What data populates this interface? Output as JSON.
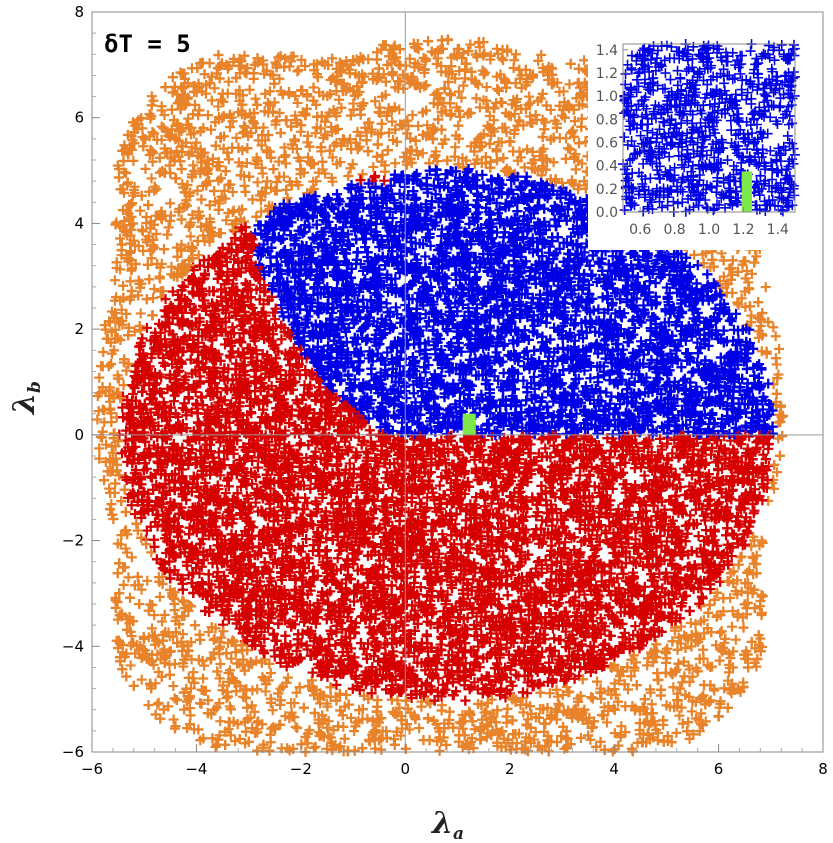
{
  "chart_data": [
    {
      "type": "scatter",
      "title": "",
      "annotation": "δT = 5",
      "xlabel": "λ",
      "xlabel_sub": "a",
      "ylabel": "λ",
      "ylabel_sub": "b",
      "xlim": [
        -6,
        8
      ],
      "ylim": [
        -6,
        8
      ],
      "xticks": [
        -6,
        -4,
        -2,
        0,
        2,
        4,
        6,
        8
      ],
      "yticks": [
        -6,
        -4,
        -2,
        0,
        2,
        4,
        6,
        8
      ],
      "xtick_labels": [
        "−6",
        "−4",
        "−2",
        "0",
        "2",
        "4",
        "6",
        "8"
      ],
      "ytick_labels": [
        "−6",
        "−4",
        "−2",
        "0",
        "2",
        "4",
        "6",
        "8"
      ],
      "marker": "+",
      "grid": false,
      "zero_lines": true,
      "colors": {
        "orange": "#e8832a",
        "red": "#d60000",
        "blue": "#0000e6",
        "green": "#7de84a"
      },
      "regions": {
        "orange": {
          "description_scan_rect": {
            "x": [
              -5.8,
              7.0
            ],
            "y": [
              -6,
              7.4
            ]
          }
        },
        "ellipse": {
          "cx": 0.8,
          "cy": 0,
          "rx": 6.3,
          "ry": 5.05
        },
        "red_boundary": [
          [
            -3.2,
            4.8
          ],
          [
            -2.8,
            3.2
          ],
          [
            -2.2,
            1.9
          ],
          [
            -1.5,
            0.9
          ],
          [
            -0.8,
            0.3
          ],
          [
            -0.3,
            0
          ]
        ],
        "green_box": {
          "x": [
            1.1,
            1.35
          ],
          "y": [
            0.0,
            0.4
          ]
        }
      }
    },
    {
      "type": "scatter",
      "title": "",
      "inset": true,
      "xlim": [
        0.5,
        1.5
      ],
      "ylim": [
        0.0,
        1.45
      ],
      "xticks": [
        0.6,
        0.8,
        1.0,
        1.2,
        1.4
      ],
      "yticks": [
        0.0,
        0.2,
        0.4,
        0.6,
        0.8,
        1.0,
        1.2,
        1.4
      ],
      "xtick_labels": [
        "0.6",
        "0.8",
        "1.0",
        "1.2",
        "1.4"
      ],
      "ytick_labels": [
        "0.0",
        "0.2",
        "0.4",
        "0.6",
        "0.8",
        "1.0",
        "1.2",
        "1.4"
      ],
      "marker": "+",
      "colors": {
        "blue": "#0000e6",
        "green": "#7de84a"
      },
      "green_box": {
        "x": [
          1.19,
          1.25
        ],
        "y": [
          0.0,
          0.35
        ]
      }
    }
  ]
}
